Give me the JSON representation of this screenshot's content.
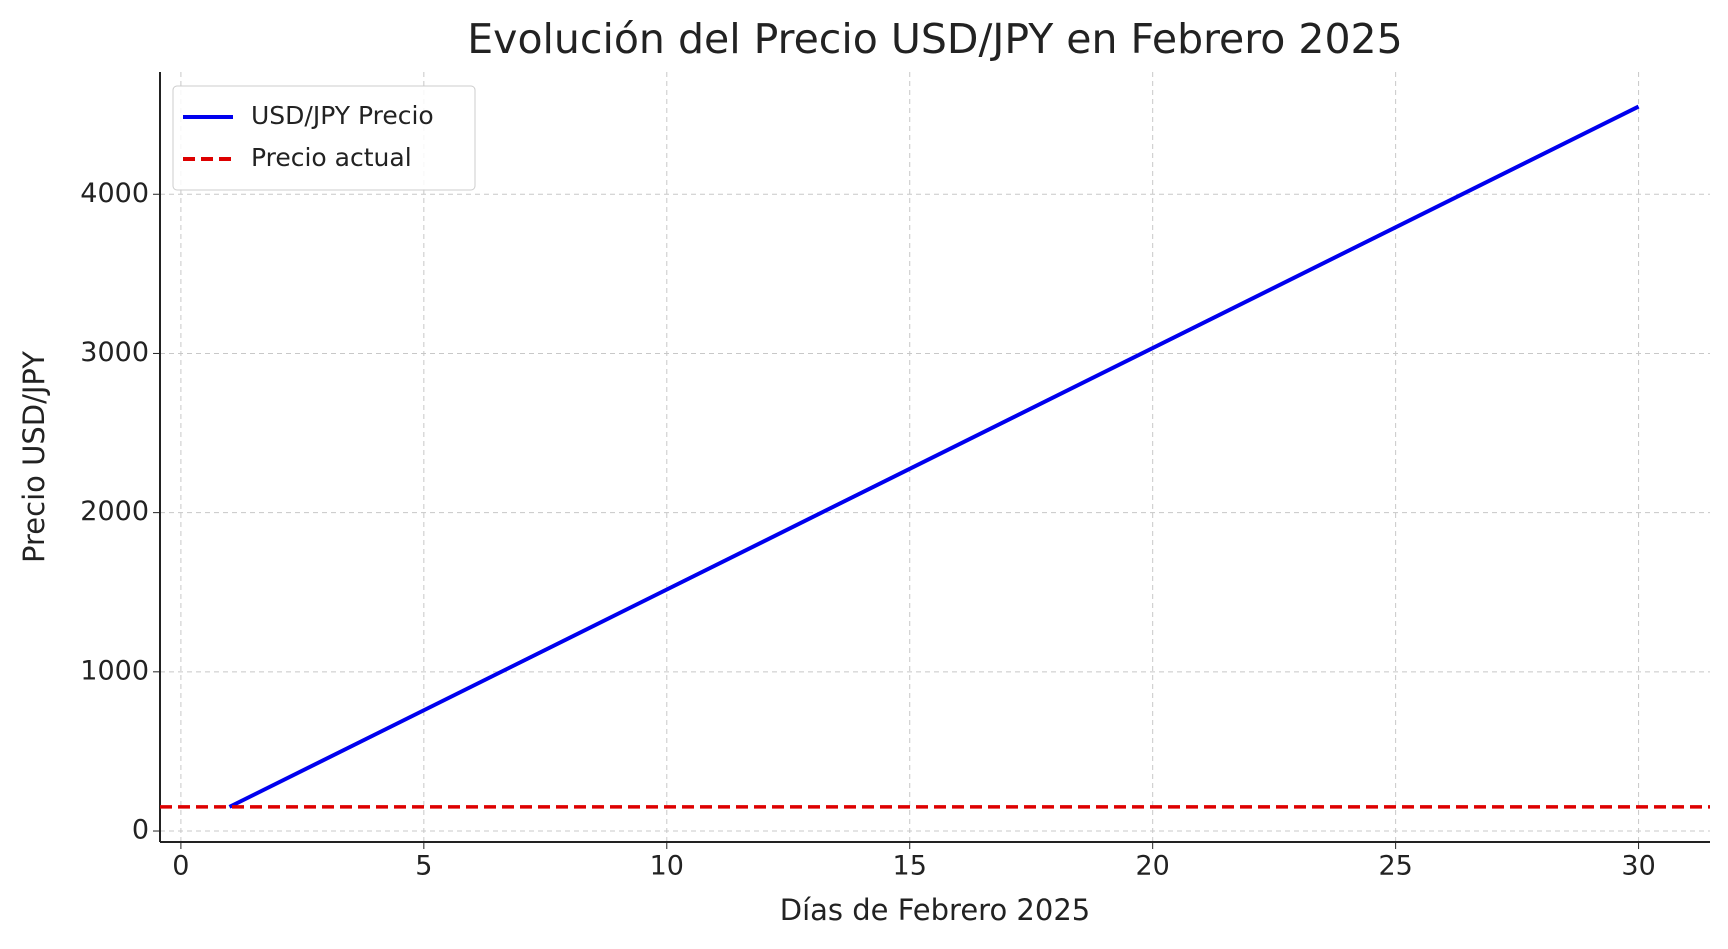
{
  "chart_data": {
    "type": "line",
    "title": "Evolución del Precio USD/JPY en Febrero 2025",
    "xlabel": "Días de Febrero 2025",
    "ylabel": "Precio USD/JPY",
    "x": [
      1,
      30
    ],
    "series": [
      {
        "name": "USD/JPY Precio",
        "color": "#0000ee",
        "values": [
          151.7,
          4551
        ]
      }
    ],
    "hlines": [
      {
        "name": "Precio actual",
        "color": "#dd0000",
        "value": 151.7,
        "dash": true
      }
    ],
    "xlim": [
      -0.43,
      31.47
    ],
    "xticks": [
      0,
      5,
      10,
      15,
      20,
      25,
      30
    ],
    "ylim": [
      -69,
      4768
    ],
    "yticks": [
      0,
      1000,
      2000,
      3000,
      4000
    ],
    "grid": true,
    "legend": "upper left"
  }
}
